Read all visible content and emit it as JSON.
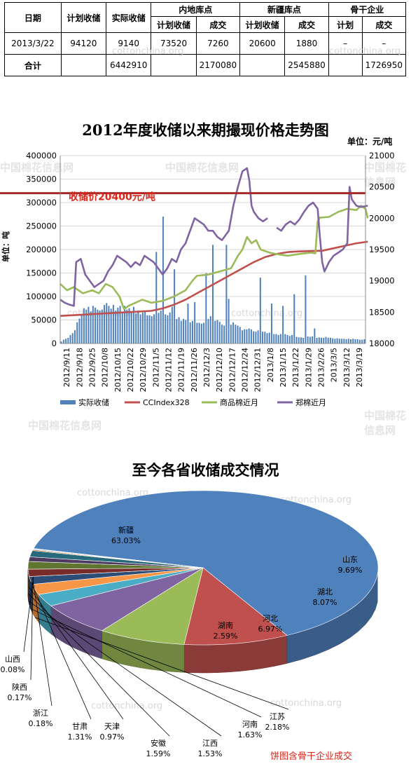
{
  "table": {
    "headers": {
      "date": "日期",
      "plan": "计划收储",
      "actual": "实际收储",
      "inland": "内地库点",
      "xinjiang": "新疆库点",
      "backbone": "骨干企业",
      "sub_plan": "计划收储",
      "sub_deal": "成交",
      "sub_plan2": "计划收储",
      "sub_deal2": "成交",
      "sub_plan3": "计划",
      "sub_deal3": "成交"
    },
    "row1": [
      "2013/3/22",
      "94120",
      "9140",
      "73520",
      "7260",
      "20600",
      "1880",
      "–",
      "–"
    ],
    "total": [
      "合计",
      "",
      "6442910",
      "",
      "2170080",
      "",
      "2545880",
      "",
      "1726950"
    ]
  },
  "watermarks": {
    "site": "cottonchina.org",
    "brand": "中国棉花信息网"
  },
  "chart_data": [
    {
      "type": "bar+line",
      "title": "2012年度收储以来期撮现价格走势图",
      "unit_label": "单位：元/吨",
      "ylabel": "单位：吨",
      "ylim": [
        0,
        400000
      ],
      "y2lim": [
        18000,
        21000
      ],
      "yticks": [
        "0",
        "50000",
        "100000",
        "150000",
        "200000",
        "250000",
        "300000",
        "350000",
        "400000"
      ],
      "y2ticks": [
        "18000",
        "18500",
        "19000",
        "19500",
        "20000",
        "20500",
        "21000"
      ],
      "xtick_labels": [
        "2012/9/11",
        "2012/9/18",
        "2012/9/25",
        "2012/10/8",
        "2012/10/15",
        "2012/10/22",
        "2012/10/29",
        "2012/11/5",
        "2012/11/12",
        "2012/11/19",
        "2012/11/26",
        "2012/12/3",
        "2012/12/10",
        "2012/12/17",
        "2012/12/24",
        "2012/12/31",
        "2013/1/8",
        "2013/1/15",
        "2013/1/22",
        "2013/1/29",
        "2013/2/26",
        "2013/3/5",
        "2013/3/12",
        "2013/3/19"
      ],
      "reference_line": {
        "value": 20400,
        "label": "收储价20400元/吨"
      },
      "series": [
        {
          "name": "实际收储",
          "type": "bar",
          "color": "#4f81bd",
          "values": [
            4000,
            8000,
            10000,
            12000,
            18000,
            22000,
            28000,
            45000,
            53000,
            60000,
            75000,
            72000,
            78000,
            68000,
            80000,
            76000,
            72000,
            70000,
            72000,
            82000,
            86000,
            80000,
            74000,
            82000,
            70000,
            76000,
            80000,
            68000,
            80000,
            72000,
            75000,
            68000,
            78000,
            64000,
            70000,
            62000,
            66000,
            70000,
            60000,
            60000,
            58000,
            62000,
            195000,
            65000,
            70000,
            270000,
            62000,
            60000,
            66000,
            78000,
            158000,
            52000,
            56000,
            48000,
            52000,
            50000,
            85000,
            45000,
            48000,
            88000,
            44000,
            44000,
            42000,
            44000,
            150000,
            52000,
            58000,
            210000,
            48000,
            50000,
            46000,
            40000,
            38000,
            210000,
            95000,
            40000,
            45000,
            40000,
            38000,
            35000,
            28000,
            30000,
            30000,
            32000,
            30000,
            26000,
            25000,
            28000,
            140000,
            25000,
            25000,
            22000,
            23000,
            85000,
            20000,
            20000,
            18000,
            20000,
            80000,
            20000,
            18000,
            16000,
            18000,
            105000,
            14000,
            13000,
            13000,
            12000,
            145000,
            15000,
            14000,
            15000,
            32000,
            12000,
            13000,
            12000,
            12000,
            14000,
            12000,
            12000,
            11000,
            10000,
            11000,
            10000,
            10000,
            10000,
            9000,
            10000,
            9000,
            10000,
            9000,
            9000,
            8000,
            8000,
            9000
          ]
        },
        {
          "name": "CCIndex328",
          "type": "line",
          "color": "#c0504d",
          "points": [
            [
              0,
              18440
            ],
            [
              10,
              18460
            ],
            [
              20,
              18480
            ],
            [
              30,
              18500
            ],
            [
              40,
              18520
            ],
            [
              45,
              18560
            ],
            [
              50,
              18620
            ],
            [
              55,
              18700
            ],
            [
              60,
              18800
            ],
            [
              65,
              18900
            ],
            [
              70,
              19000
            ],
            [
              75,
              19100
            ],
            [
              80,
              19200
            ],
            [
              85,
              19300
            ],
            [
              90,
              19380
            ],
            [
              95,
              19430
            ],
            [
              100,
              19460
            ],
            [
              105,
              19470
            ],
            [
              110,
              19475
            ],
            [
              115,
              19480
            ],
            [
              120,
              19520
            ],
            [
              125,
              19560
            ],
            [
              130,
              19600
            ],
            [
              135,
              19625
            ]
          ]
        },
        {
          "name": "商品棉近月",
          "type": "line",
          "color": "#9bbb59",
          "points": [
            [
              0,
              18950
            ],
            [
              3,
              18850
            ],
            [
              6,
              18900
            ],
            [
              10,
              18800
            ],
            [
              14,
              18850
            ],
            [
              17,
              18800
            ],
            [
              20,
              18950
            ],
            [
              23,
              18900
            ],
            [
              26,
              18750
            ],
            [
              28,
              18550
            ],
            [
              30,
              18600
            ],
            [
              33,
              18650
            ],
            [
              36,
              18700
            ],
            [
              40,
              18650
            ],
            [
              45,
              18680
            ],
            [
              50,
              18750
            ],
            [
              55,
              18850
            ],
            [
              58,
              19000
            ],
            [
              60,
              19080
            ],
            [
              65,
              19100
            ],
            [
              70,
              19150
            ],
            [
              75,
              19200
            ],
            [
              78,
              19400
            ],
            [
              80,
              19500
            ],
            [
              82,
              19700
            ],
            [
              84,
              19600
            ],
            [
              86,
              19650
            ],
            [
              88,
              19500
            ],
            [
              92,
              19450
            ],
            [
              96,
              19420
            ],
            [
              100,
              19400
            ],
            [
              105,
              19430
            ],
            [
              110,
              19450
            ],
            [
              112,
              19440
            ],
            [
              113,
              19950
            ],
            [
              114,
              20010
            ],
            [
              118,
              20020
            ],
            [
              122,
              20100
            ],
            [
              126,
              20150
            ],
            [
              130,
              20130
            ],
            [
              132,
              20200
            ],
            [
              134,
              20150
            ],
            [
              135,
              20000
            ]
          ]
        },
        {
          "name": "郑棉近月",
          "type": "line",
          "color": "#8064a2",
          "points": [
            [
              0,
              18700
            ],
            [
              2,
              18650
            ],
            [
              4,
              18620
            ],
            [
              6,
              18600
            ],
            [
              7,
              19300
            ],
            [
              9,
              19350
            ],
            [
              11,
              19100
            ],
            [
              13,
              19000
            ],
            [
              15,
              18900
            ],
            [
              17,
              18950
            ],
            [
              19,
              19000
            ],
            [
              21,
              19150
            ],
            [
              23,
              19250
            ],
            [
              25,
              19400
            ],
            [
              27,
              19350
            ],
            [
              29,
              19300
            ],
            [
              31,
              19220
            ],
            [
              33,
              19300
            ],
            [
              35,
              19250
            ],
            [
              37,
              19400
            ],
            [
              39,
              19350
            ],
            [
              41,
              19300
            ],
            [
              43,
              19200
            ],
            [
              45,
              19100
            ],
            [
              47,
              19200
            ],
            [
              49,
              19350
            ],
            [
              51,
              19300
            ],
            [
              53,
              19500
            ],
            [
              55,
              19600
            ],
            [
              57,
              19800
            ],
            [
              59,
              20000
            ],
            [
              61,
              19950
            ],
            [
              63,
              19900
            ],
            [
              65,
              19800
            ],
            [
              67,
              19800
            ],
            [
              69,
              19700
            ],
            [
              71,
              19650
            ],
            [
              72,
              19700
            ],
            [
              74,
              19800
            ],
            [
              76,
              20200
            ],
            [
              78,
              20500
            ],
            [
              80,
              20750
            ],
            [
              82,
              20800
            ],
            [
              83,
              20600
            ],
            [
              84,
              20200
            ],
            [
              85,
              20100
            ],
            [
              87,
              20000
            ],
            [
              89,
              19950
            ],
            [
              91,
              20000
            ],
            [
              null,
              null
            ],
            [
              95,
              19850
            ],
            [
              97,
              19800
            ],
            [
              99,
              19900
            ],
            [
              101,
              19950
            ],
            [
              103,
              19900
            ],
            [
              105,
              19980
            ],
            [
              107,
              20100
            ],
            [
              109,
              20200
            ],
            [
              111,
              20250
            ],
            [
              113,
              20150
            ],
            [
              114,
              19700
            ],
            [
              115,
              19300
            ],
            [
              116,
              19150
            ],
            [
              118,
              19300
            ],
            [
              120,
              19400
            ],
            [
              122,
              19450
            ],
            [
              124,
              19500
            ],
            [
              126,
              19600
            ],
            [
              127,
              20500
            ],
            [
              128,
              20300
            ],
            [
              130,
              20200
            ],
            [
              132,
              20180
            ],
            [
              135,
              20200
            ]
          ]
        }
      ]
    },
    {
      "type": "pie",
      "title": "至今各省收储成交情况",
      "slices": [
        {
          "name": "新疆",
          "pct": 63.03,
          "label": "63.03%",
          "color": "#4f81bd"
        },
        {
          "name": "山东",
          "pct": 9.69,
          "label": "9.69%",
          "color": "#c0504d"
        },
        {
          "name": "湖北",
          "pct": 8.07,
          "label": "8.07%",
          "color": "#9bbb59"
        },
        {
          "name": "河北",
          "pct": 6.97,
          "label": "6.97%",
          "color": "#8064a2"
        },
        {
          "name": "湖南",
          "pct": 2.59,
          "label": "2.59%",
          "color": "#4bacc6"
        },
        {
          "name": "江苏",
          "pct": 2.18,
          "label": "2.18%",
          "color": "#f79646"
        },
        {
          "name": "河南",
          "pct": 1.63,
          "label": "1.63%",
          "color": "#2c4d75"
        },
        {
          "name": "江西",
          "pct": 1.53,
          "label": "1.53%",
          "color": "#772c2a"
        },
        {
          "name": "安徽",
          "pct": 1.59,
          "label": "1.59%",
          "color": "#5f7530"
        },
        {
          "name": "天津",
          "pct": 0.97,
          "label": "0.97%",
          "color": "#4d3b62"
        },
        {
          "name": "甘肃",
          "pct": 1.31,
          "label": "1.31%",
          "color": "#276a7c"
        },
        {
          "name": "浙江",
          "pct": 0.18,
          "label": "0.18%",
          "color": "#b65708"
        },
        {
          "name": "陕西",
          "pct": 0.17,
          "label": "0.17%",
          "color": "#729aca"
        },
        {
          "name": "山西",
          "pct": 0.08,
          "label": "0.08%",
          "color": "#cd7371"
        }
      ],
      "note": "饼图含骨干企业成交"
    }
  ]
}
